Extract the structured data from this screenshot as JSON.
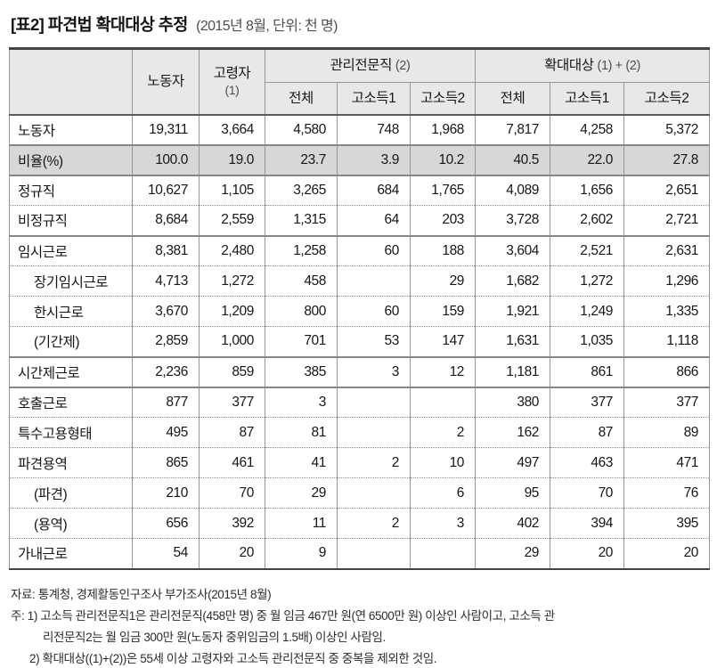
{
  "title": {
    "main": "[표2] 파견법 확대대상 추정",
    "sub": "(2015년 8월, 단위: 천 명)"
  },
  "table": {
    "header": {
      "worker": "노동자",
      "elderly": "고령자",
      "elderly_paren": "(1)",
      "mgmt": "관리전문직",
      "mgmt_paren": "(2)",
      "expand": "확대대상",
      "expand_paren": "(1) + (2)",
      "sub": [
        "전체",
        "고소득1",
        "고소득2",
        "전체",
        "고소득1",
        "고소득2"
      ]
    },
    "rows": [
      {
        "label": "노동자",
        "indent": false,
        "shaded": false,
        "border": "none",
        "values": [
          "19,311",
          "3,664",
          "4,580",
          "748",
          "1,968",
          "7,817",
          "4,258",
          "5,372"
        ]
      },
      {
        "label": "비율(%)",
        "indent": false,
        "shaded": true,
        "border": "solid",
        "values": [
          "100.0",
          "19.0",
          "23.7",
          "3.9",
          "10.2",
          "40.5",
          "22.0",
          "27.8"
        ]
      },
      {
        "label": "정규직",
        "indent": false,
        "shaded": false,
        "border": "solid",
        "values": [
          "10,627",
          "1,105",
          "3,265",
          "684",
          "1,765",
          "4,089",
          "1,656",
          "2,651"
        ]
      },
      {
        "label": "비정규직",
        "indent": false,
        "shaded": false,
        "border": "dotted",
        "values": [
          "8,684",
          "2,559",
          "1,315",
          "64",
          "203",
          "3,728",
          "2,602",
          "2,721"
        ]
      },
      {
        "label": "임시근로",
        "indent": false,
        "shaded": false,
        "border": "solid",
        "values": [
          "8,381",
          "2,480",
          "1,258",
          "60",
          "188",
          "3,604",
          "2,521",
          "2,631"
        ]
      },
      {
        "label": "장기임시근로",
        "indent": true,
        "shaded": false,
        "border": "dotted",
        "values": [
          "4,713",
          "1,272",
          "458",
          "",
          "29",
          "1,682",
          "1,272",
          "1,296"
        ]
      },
      {
        "label": "한시근로",
        "indent": true,
        "shaded": false,
        "border": "dotted",
        "values": [
          "3,670",
          "1,209",
          "800",
          "60",
          "159",
          "1,921",
          "1,249",
          "1,335"
        ]
      },
      {
        "label": "(기간제)",
        "indent": true,
        "shaded": false,
        "border": "dotted",
        "values": [
          "2,859",
          "1,000",
          "701",
          "53",
          "147",
          "1,631",
          "1,035",
          "1,118"
        ]
      },
      {
        "label": "시간제근로",
        "indent": false,
        "shaded": false,
        "border": "solid",
        "values": [
          "2,236",
          "859",
          "385",
          "3",
          "12",
          "1,181",
          "861",
          "866"
        ]
      },
      {
        "label": "호출근로",
        "indent": false,
        "shaded": false,
        "border": "solid",
        "values": [
          "877",
          "377",
          "3",
          "",
          "",
          "380",
          "377",
          "377"
        ]
      },
      {
        "label": "특수고용형태",
        "indent": false,
        "shaded": false,
        "border": "dotted",
        "values": [
          "495",
          "87",
          "81",
          "",
          "2",
          "162",
          "87",
          "89"
        ]
      },
      {
        "label": "파견용역",
        "indent": false,
        "shaded": false,
        "border": "dotted",
        "values": [
          "865",
          "461",
          "41",
          "2",
          "10",
          "497",
          "463",
          "471"
        ]
      },
      {
        "label": "(파견)",
        "indent": true,
        "shaded": false,
        "border": "dotted",
        "values": [
          "210",
          "70",
          "29",
          "",
          "6",
          "95",
          "70",
          "76"
        ]
      },
      {
        "label": "(용역)",
        "indent": true,
        "shaded": false,
        "border": "dotted",
        "values": [
          "656",
          "392",
          "11",
          "2",
          "3",
          "402",
          "394",
          "395"
        ]
      },
      {
        "label": "가내근로",
        "indent": false,
        "shaded": false,
        "border": "dotted",
        "values": [
          "54",
          "20",
          "9",
          "",
          "",
          "29",
          "20",
          "20"
        ]
      }
    ]
  },
  "notes": {
    "source": "자료: 통계청, 경제활동인구조사 부가조사(2015년 8월)",
    "note1_line1": "주: 1) 고소득 관리전문직1은 관리전문직(458만 명) 중 월 임금 467만 원(연 6500만 원) 이상인 사람이고, 고소득 관",
    "note1_line2": "리전문직2는 월 임금 300만 원(노동자 중위임금의 1.5배) 이상인 사람임.",
    "note2": "2) 확대대상((1)+(2))은 55세 이상 고령자와 고소득 관리전문직 중 중복을 제외한 것임."
  },
  "colors": {
    "header_bg": "#e8e8e8",
    "ratio_row_bg": "#d7d7d7",
    "grid_line": "#979797",
    "heavy_line": "#434343",
    "text": "#161616"
  }
}
